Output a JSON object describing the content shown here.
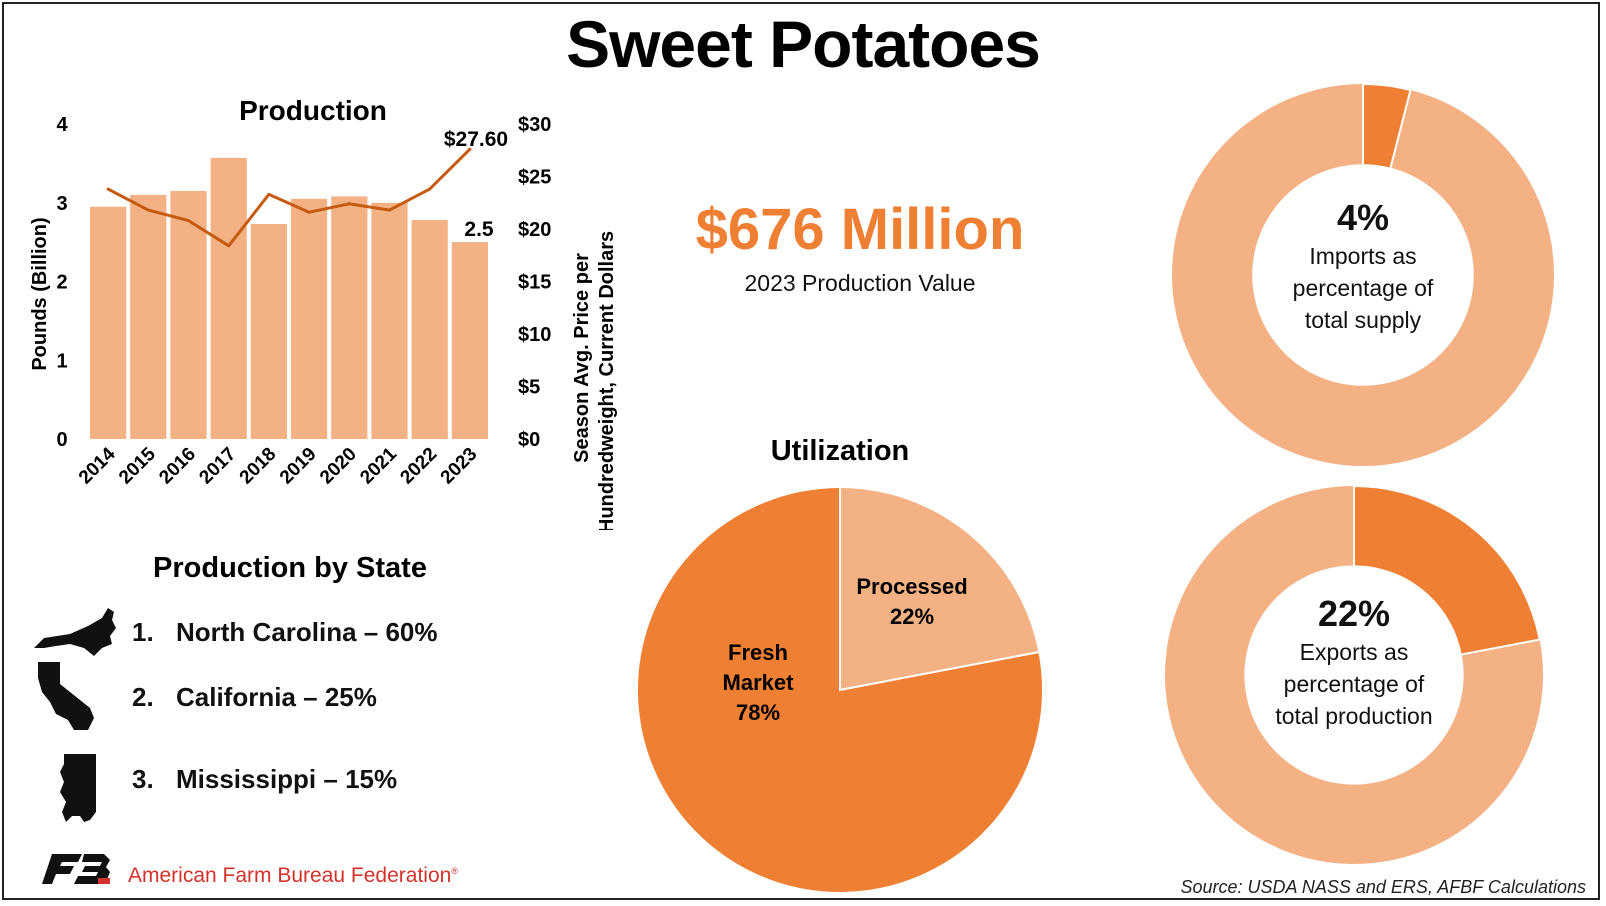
{
  "title": "Sweet Potatoes",
  "colors": {
    "light": "#f4b183",
    "dark": "#ee7f33",
    "line": "#c55a11"
  },
  "production_chart": {
    "title": "Production",
    "ylabel": "Pounds (Billion)",
    "y2label_line1": "Season Avg. Price per",
    "y2label_line2": "Hundredweight, Current Dollars",
    "y_ticks": [
      "0",
      "1",
      "2",
      "3",
      "4"
    ],
    "y2_ticks": [
      "$0",
      "$5",
      "$10",
      "$15",
      "$20",
      "$25",
      "$30"
    ],
    "annot_price": "$27.60",
    "annot_bar": "2.5"
  },
  "chart_data": [
    {
      "type": "bar",
      "categories": [
        "2014",
        "2015",
        "2016",
        "2017",
        "2018",
        "2019",
        "2020",
        "2021",
        "2022",
        "2023"
      ],
      "series": [
        {
          "name": "Pounds (Billion)",
          "axis": "left",
          "type": "bar",
          "values": [
            2.95,
            3.1,
            3.15,
            3.57,
            2.73,
            3.05,
            3.08,
            3.0,
            2.78,
            2.5
          ]
        },
        {
          "name": "Season Avg. Price per Hundredweight, Current Dollars",
          "axis": "right",
          "type": "line",
          "values": [
            23.8,
            21.8,
            20.8,
            18.4,
            23.3,
            21.6,
            22.4,
            21.8,
            23.8,
            27.6
          ]
        }
      ],
      "ylim": [
        0,
        4
      ],
      "y2lim": [
        0,
        30
      ]
    },
    {
      "type": "pie",
      "title": "Utilization",
      "labels": [
        "Processed",
        "Fresh Market"
      ],
      "values": [
        22,
        78
      ],
      "display": [
        "22%",
        "78%"
      ]
    },
    {
      "type": "pie",
      "subtype": "donut",
      "value": 4,
      "pct_text": "4%",
      "label_lines": [
        "Imports as",
        "percentage of",
        "total supply"
      ]
    },
    {
      "type": "pie",
      "subtype": "donut",
      "value": 22,
      "pct_text": "22%",
      "label_lines": [
        "Exports as",
        "percentage of",
        "total production"
      ]
    }
  ],
  "kpi": {
    "value": "$676 Million",
    "label": "2023 Production Value"
  },
  "states": {
    "title": "Production by State",
    "items": [
      {
        "rank": "1.",
        "name": "North Carolina – 60%",
        "shape": "north-carolina-icon"
      },
      {
        "rank": "2.",
        "name": "California – 25%",
        "shape": "california-icon"
      },
      {
        "rank": "3.",
        "name": "Mississippi – 15%",
        "shape": "mississippi-icon"
      }
    ]
  },
  "pie_labels": {
    "processed_name": "Processed",
    "processed_pct": "22%",
    "fresh_line1": "Fresh",
    "fresh_line2": "Market",
    "fresh_pct": "78%"
  },
  "footer": {
    "org": "American Farm Bureau Federation",
    "reg": "®",
    "source": "Source: USDA NASS and ERS, AFBF Calculations"
  }
}
